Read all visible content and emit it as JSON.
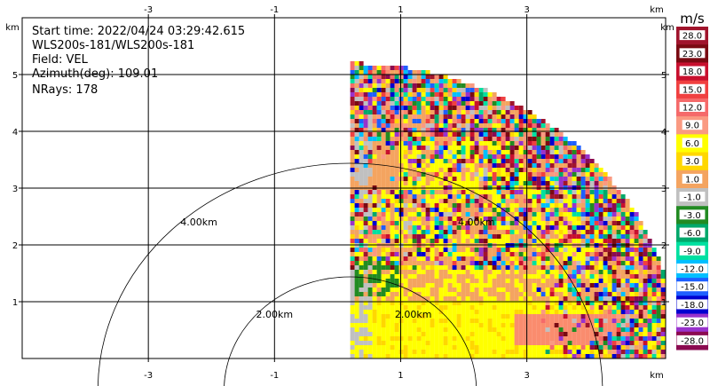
{
  "chart_data": {
    "type": "heatmap",
    "info_lines": [
      "Start time: 2022/04/24 03:29:42.615",
      "WLS200s-181/WLS200s-181",
      "Field: VEL",
      "Azimuth(deg): 109.01",
      "NRays: 178"
    ],
    "axis_unit": "km",
    "x_ticks": [
      "-3",
      "-1",
      "1",
      "3"
    ],
    "x_tick_values": [
      -3,
      -1,
      1,
      3
    ],
    "y_ticks": [
      "1",
      "2",
      "3",
      "4",
      "5"
    ],
    "y_tick_values": [
      1,
      2,
      3,
      4,
      5
    ],
    "xlim": [
      -5,
      5.2
    ],
    "ylim": [
      0,
      6
    ],
    "grid": true,
    "range_rings": [
      {
        "label": "2.00km",
        "radius_km": 2
      },
      {
        "label": "4.00km",
        "radius_km": 4
      }
    ],
    "ring_center_km": [
      0.2,
      -0.9
    ],
    "sector_max_range_km": 5.2,
    "colorbar": {
      "unit": "m/s",
      "levels": [
        "28.0",
        "23.0",
        "18.0",
        "15.0",
        "12.0",
        "9.0",
        "6.0",
        "3.0",
        "1.0",
        "-1.0",
        "-3.0",
        "-6.0",
        "-9.0",
        "-12.0",
        "-15.0",
        "-18.0",
        "-23.0",
        "-28.0"
      ],
      "colors": [
        "#a0142c",
        "#7a0a12",
        "#c8102e",
        "#f04040",
        "#f56a6a",
        "#fa9a82",
        "#ffff00",
        "#ffd700",
        "#f4a460",
        "#c0c0c0",
        "#228b22",
        "#00a86b",
        "#00e0a0",
        "#00bfff",
        "#1e5fff",
        "#0000d0",
        "#9932cc",
        "#8b0a50"
      ]
    },
    "data_description": "Doppler velocity field, positive 3-9 m/s dominant"
  }
}
